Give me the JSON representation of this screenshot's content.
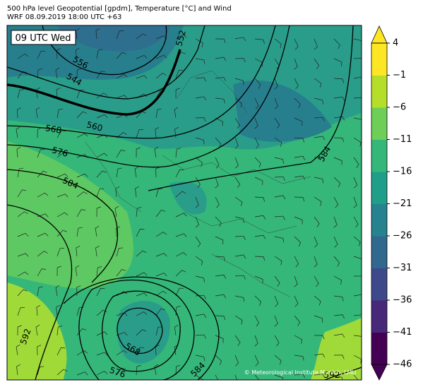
{
  "header": {
    "title": "500 hPa level Geopotential [gpdm], Temperature [°C] and Wind",
    "subtitle": "WRF 08.09.2019 18:00 UTC +63",
    "time_label": "09 UTC Wed"
  },
  "contour_labels": [
    "556",
    "544",
    "552",
    "568",
    "560",
    "576",
    "584",
    "584",
    "592",
    "568",
    "576",
    "584",
    "592"
  ],
  "footer": {
    "copyright": "© Meteorological Institute Munich, LMU"
  },
  "colorbar": {
    "lim": [
      -46,
      4
    ],
    "ticks": [
      4,
      {
        "value": -1,
        "label": "−1"
      },
      {
        "value": -6,
        "label": "−6"
      },
      {
        "value": -11,
        "label": "−11"
      },
      {
        "value": -16,
        "label": "−16"
      },
      {
        "value": -21,
        "label": "−21"
      },
      {
        "value": -26,
        "label": "−26"
      },
      {
        "value": -31,
        "label": "−31"
      },
      {
        "value": -36,
        "label": "−36"
      },
      {
        "value": -41,
        "label": "−41"
      },
      {
        "value": -46,
        "label": "−46"
      }
    ],
    "colors": [
      "#440154",
      "#482878",
      "#3e4989",
      "#31688e",
      "#26828e",
      "#1f9e89",
      "#35b779",
      "#6ece58",
      "#b5de2b",
      "#fde725"
    ],
    "under_color": "#440154",
    "over_color": "#fde725"
  }
}
